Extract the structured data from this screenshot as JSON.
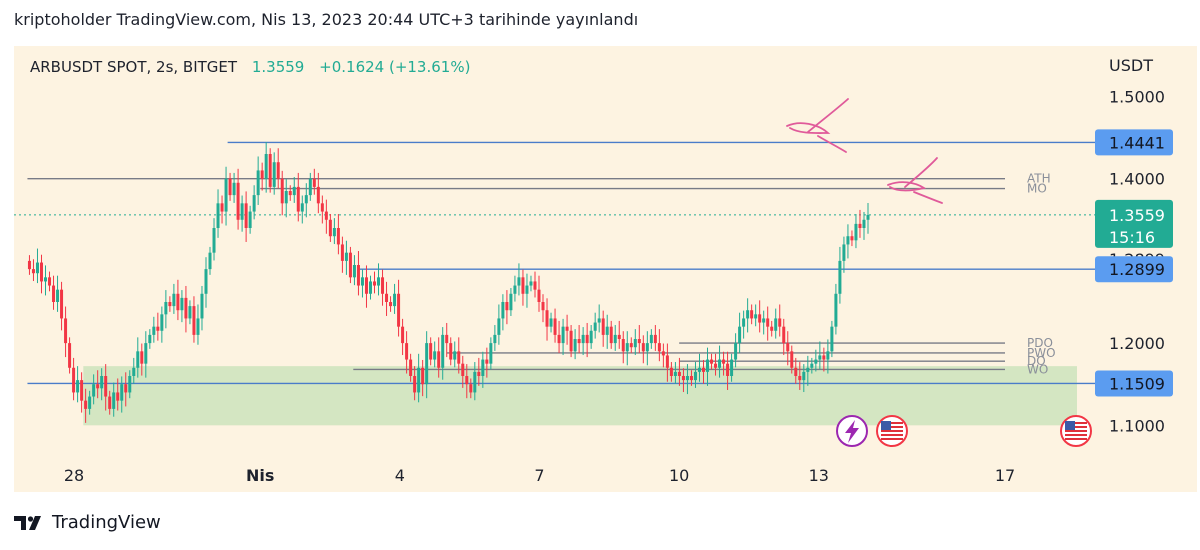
{
  "header": {
    "caption": "kriptoholder TradingView.com, Nis 13, 2023 20:44 UTC+3 tarihinde yayınlandı"
  },
  "symbol": {
    "name": "ARBUSDT SPOT, 2s, BITGET",
    "price": "1.3559",
    "change": "+0.1624 (+13.61%)"
  },
  "footer": {
    "brand": "TradingView"
  },
  "colors": {
    "up": "#22ab94",
    "down": "#f23645",
    "level_blue": "#4a7cc9",
    "level_gray": "#787b86",
    "zone_green": "#d4e6c2",
    "tag_blue": "#5b9cf0",
    "tag_green": "#22ab94",
    "annotation_pink": "#e05a9a"
  },
  "chart_data": {
    "type": "candlestick",
    "currency": "USDT",
    "y_ticks": [
      "1.5000",
      "1.4000",
      "1.2000",
      "1.1000"
    ],
    "ylim": [
      1.07,
      1.52
    ],
    "x_ticks": [
      "28",
      "Nis",
      "4",
      "7",
      "10",
      "13",
      "17"
    ],
    "x_tick_days": [
      0,
      4,
      7,
      10,
      13,
      16,
      20
    ],
    "last_day": 17.1,
    "current_price": 1.3559,
    "countdown": "15:16",
    "price_tags": [
      "1.4441",
      "1.2899",
      "1.1509"
    ],
    "hidden_tag": "1.2899",
    "levels": [
      {
        "name": "ATH",
        "price": 1.4,
        "from_day": -1.0,
        "to_day": 18.3
      },
      {
        "name": "MO",
        "price": 1.388,
        "from_day": 4.0,
        "to_day": 18.3
      },
      {
        "name": "PDO",
        "price": 1.2,
        "from_day": 13.0,
        "to_day": 18.3
      },
      {
        "name": "PWO",
        "price": 1.188,
        "from_day": 8.0,
        "to_day": 18.3
      },
      {
        "name": "DO",
        "price": 1.178,
        "from_day": 13.0,
        "to_day": 18.3
      },
      {
        "name": "WO",
        "price": 1.168,
        "from_day": 6.0,
        "to_day": 18.3
      }
    ],
    "blue_lines": [
      {
        "price": 1.4441,
        "from_day": 3.3
      },
      {
        "price": 1.2899,
        "from_day": 6.1
      },
      {
        "price": 1.1509,
        "from_day": -1.0
      }
    ],
    "support_zone": {
      "from_price": 1.1,
      "to_price": 1.172,
      "from_day": 0.2
    },
    "candles_close": [
      1.29,
      1.285,
      1.298,
      1.275,
      1.28,
      1.27,
      1.25,
      1.265,
      1.23,
      1.2,
      1.17,
      1.14,
      1.155,
      1.13,
      1.12,
      1.135,
      1.15,
      1.145,
      1.16,
      1.135,
      1.12,
      1.14,
      1.13,
      1.15,
      1.14,
      1.16,
      1.17,
      1.19,
      1.175,
      1.2,
      1.21,
      1.22,
      1.215,
      1.235,
      1.25,
      1.245,
      1.26,
      1.24,
      1.255,
      1.23,
      1.245,
      1.21,
      1.23,
      1.26,
      1.29,
      1.31,
      1.34,
      1.37,
      1.36,
      1.4,
      1.38,
      1.395,
      1.35,
      1.37,
      1.34,
      1.36,
      1.38,
      1.41,
      1.4,
      1.43,
      1.39,
      1.42,
      1.4,
      1.37,
      1.385,
      1.38,
      1.39,
      1.36,
      1.37,
      1.38,
      1.4,
      1.39,
      1.37,
      1.36,
      1.35,
      1.33,
      1.34,
      1.32,
      1.3,
      1.31,
      1.28,
      1.295,
      1.27,
      1.28,
      1.26,
      1.275,
      1.27,
      1.28,
      1.26,
      1.25,
      1.245,
      1.26,
      1.22,
      1.2,
      1.18,
      1.16,
      1.14,
      1.17,
      1.15,
      1.2,
      1.18,
      1.19,
      1.17,
      1.21,
      1.2,
      1.18,
      1.19,
      1.175,
      1.16,
      1.15,
      1.14,
      1.165,
      1.16,
      1.18,
      1.175,
      1.2,
      1.21,
      1.23,
      1.25,
      1.24,
      1.26,
      1.27,
      1.28,
      1.26,
      1.27,
      1.275,
      1.265,
      1.25,
      1.24,
      1.22,
      1.23,
      1.21,
      1.2,
      1.22,
      1.215,
      1.19,
      1.205,
      1.2,
      1.21,
      1.2,
      1.215,
      1.225,
      1.23,
      1.21,
      1.22,
      1.2,
      1.21,
      1.205,
      1.19,
      1.2,
      1.195,
      1.205,
      1.2,
      1.19,
      1.2,
      1.21,
      1.2,
      1.19,
      1.185,
      1.17,
      1.16,
      1.165,
      1.16,
      1.155,
      1.16,
      1.155,
      1.165,
      1.17,
      1.165,
      1.18,
      1.175,
      1.17,
      1.18,
      1.175,
      1.16,
      1.18,
      1.2,
      1.22,
      1.23,
      1.24,
      1.23,
      1.235,
      1.225,
      1.23,
      1.22,
      1.215,
      1.23,
      1.22,
      1.2,
      1.19,
      1.17,
      1.16,
      1.155,
      1.165,
      1.17,
      1.175,
      1.18,
      1.185,
      1.18,
      1.19,
      1.22,
      1.26,
      1.3,
      1.32,
      1.33,
      1.325,
      1.345,
      1.34,
      1.35,
      1.3559
    ]
  }
}
